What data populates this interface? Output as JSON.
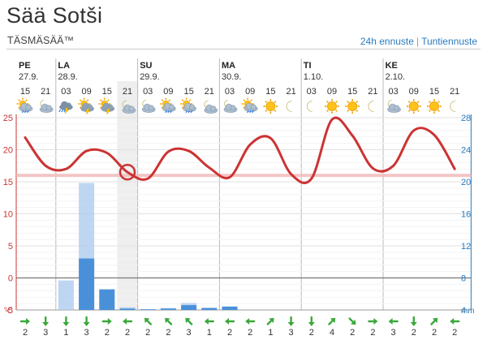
{
  "page": {
    "title": "Sää Sotši",
    "brand": "TÄSMÄSÄÄ™",
    "links": [
      "24h ennuste",
      "Tuntiennuste"
    ],
    "separator": "|"
  },
  "colors": {
    "temp_line": "#cc3333",
    "precip_bar": "#4a90d9",
    "precip_light": "#a9c8ee",
    "left_axis": "#cc3333",
    "right_axis": "#2a7bbf",
    "now_band": "#eeeeee",
    "arrow": "#3aa83a"
  },
  "days": [
    {
      "name": "PE",
      "date": "27.9."
    },
    {
      "name": "LA",
      "date": "28.9."
    },
    {
      "name": "SU",
      "date": "29.9."
    },
    {
      "name": "MA",
      "date": "30.9."
    },
    {
      "name": "TI",
      "date": "1.10."
    },
    {
      "name": "KE",
      "date": "2.10."
    }
  ],
  "hours": [
    "15",
    "21",
    "03",
    "09",
    "15",
    "21",
    "03",
    "09",
    "15",
    "21",
    "03",
    "09",
    "15",
    "21",
    "03",
    "09",
    "15",
    "21",
    "03",
    "09",
    "15",
    "21"
  ],
  "icons": [
    "sun-cloud-rain-icon",
    "cloud-night-icon",
    "thunder-cloud-icon",
    "sun-thunder-icon",
    "sun-thunder-icon",
    "moon-cloud-icon",
    "cloud-night-icon",
    "sun-cloud-rain-icon",
    "sun-cloud-rain-icon",
    "moon-cloud-icon",
    "cloud-night-icon",
    "sun-cloud-rain-icon",
    "sun-icon",
    "moon-icon",
    "moon-icon",
    "sun-icon",
    "sun-icon",
    "moon-icon",
    "cloud-night-icon",
    "sun-icon",
    "sun-icon",
    "moon-icon"
  ],
  "left_axis": {
    "labels": [
      "25",
      "20",
      "15",
      "10",
      "5",
      "0",
      "-5",
      "°C"
    ]
  },
  "right_axis": {
    "labels": [
      "28",
      "24",
      "20",
      "16",
      "12",
      "8",
      "4",
      "mm"
    ]
  },
  "wind": {
    "directions": [
      "E",
      "S",
      "S",
      "S",
      "E",
      "W",
      "NW",
      "NW",
      "NW",
      "W",
      "W",
      "W",
      "NE",
      "S",
      "S",
      "NE",
      "SE",
      "E",
      "W",
      "S",
      "NE",
      "W"
    ],
    "speeds": [
      "2",
      "3",
      "1",
      "3",
      "2",
      "2",
      "2",
      "2",
      "3",
      "1",
      "2",
      "2",
      "1",
      "3",
      "2",
      "4",
      "2",
      "2",
      "3",
      "2",
      "2",
      "2"
    ]
  },
  "chart_data": {
    "type": "line",
    "x": [
      "PE 15",
      "PE 21",
      "LA 03",
      "LA 09",
      "LA 15",
      "LA 21",
      "SU 03",
      "SU 09",
      "SU 15",
      "SU 21",
      "MA 03",
      "MA 09",
      "MA 15",
      "MA 21",
      "TI 03",
      "TI 09",
      "TI 15",
      "TI 21",
      "KE 03",
      "KE 09",
      "KE 15",
      "KE 21"
    ],
    "ylim_left": [
      -5,
      25
    ],
    "ylim_right": [
      0,
      28
    ],
    "temperature_reference": 16,
    "current_index": 5,
    "series": [
      {
        "values": [
          21.9,
          17.5,
          17.0,
          19.8,
          19.5,
          16.5,
          15.5,
          19.7,
          19.8,
          17.2,
          15.7,
          20.8,
          21.8,
          16.2,
          15.5,
          24.7,
          22.2,
          17.1,
          17.5,
          23.0,
          22.3,
          17.0
        ]
      },
      {
        "values": [
          0.0,
          0.0,
          4.3,
          18.5,
          3.0,
          0.4,
          0.1,
          0.3,
          1.0,
          0.3,
          0.4,
          0.0,
          0.0,
          0.0,
          0.0,
          0.0,
          0.0,
          0.0,
          0.0,
          0.0,
          0.0,
          0.0
        ]
      },
      {
        "values": [
          0.0,
          0.0,
          0.0,
          7.5,
          3.0,
          0.2,
          0.1,
          0.2,
          0.7,
          0.3,
          0.5,
          0.0,
          0.0,
          0.0,
          0.0,
          0.0,
          0.0,
          0.0,
          0.0,
          0.0,
          0.0,
          0.0
        ]
      }
    ]
  }
}
